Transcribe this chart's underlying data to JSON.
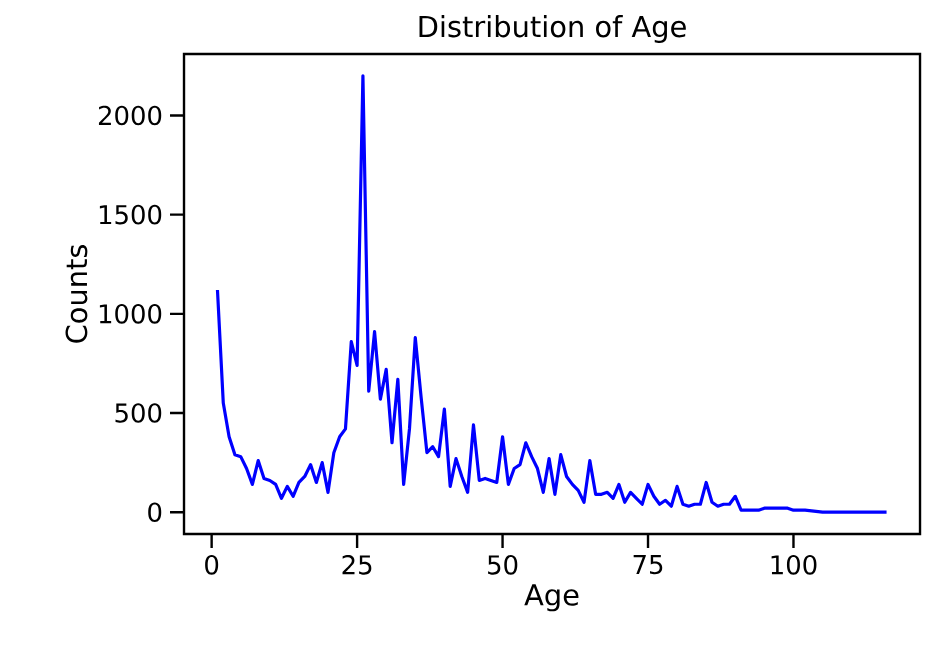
{
  "chart_data": {
    "type": "line",
    "title": "Distribution of Age",
    "xlabel": "Age",
    "ylabel": "Counts",
    "x": [
      1,
      2,
      3,
      4,
      5,
      6,
      7,
      8,
      9,
      10,
      11,
      12,
      13,
      14,
      15,
      16,
      17,
      18,
      19,
      20,
      21,
      22,
      23,
      24,
      25,
      26,
      27,
      28,
      29,
      30,
      31,
      32,
      33,
      34,
      35,
      36,
      37,
      38,
      39,
      40,
      41,
      42,
      43,
      44,
      45,
      46,
      47,
      48,
      49,
      50,
      51,
      52,
      53,
      54,
      55,
      56,
      57,
      58,
      59,
      60,
      61,
      62,
      63,
      64,
      65,
      66,
      67,
      68,
      69,
      70,
      71,
      72,
      73,
      74,
      75,
      76,
      77,
      78,
      79,
      80,
      81,
      82,
      83,
      84,
      85,
      86,
      87,
      88,
      89,
      90,
      91,
      92,
      93,
      94,
      95,
      96,
      97,
      98,
      99,
      100,
      101,
      102,
      105,
      110,
      116
    ],
    "series": [
      {
        "color": "#0000ff",
        "values": [
          1120,
          550,
          380,
          290,
          280,
          220,
          140,
          260,
          170,
          160,
          140,
          70,
          130,
          80,
          150,
          180,
          240,
          150,
          250,
          100,
          300,
          380,
          420,
          860,
          740,
          2200,
          610,
          910,
          570,
          720,
          350,
          670,
          140,
          420,
          880,
          580,
          300,
          330,
          280,
          520,
          130,
          270,
          180,
          100,
          440,
          160,
          170,
          160,
          150,
          380,
          140,
          220,
          240,
          350,
          280,
          220,
          100,
          270,
          90,
          290,
          180,
          140,
          110,
          50,
          260,
          90,
          90,
          100,
          70,
          140,
          50,
          100,
          70,
          40,
          140,
          80,
          40,
          60,
          30,
          130,
          40,
          30,
          40,
          40,
          150,
          50,
          30,
          40,
          40,
          80,
          10,
          10,
          10,
          10,
          20,
          20,
          20,
          20,
          20,
          10,
          10,
          10,
          0,
          0,
          0
        ]
      }
    ],
    "xlim": [
      -4.75,
      121.75
    ],
    "ylim": [
      -110,
      2310
    ],
    "xticks": [
      0,
      25,
      50,
      75,
      100
    ],
    "yticks": [
      0,
      500,
      1000,
      1500,
      2000
    ],
    "grid": false,
    "marker": "none",
    "line_style": "solid"
  }
}
